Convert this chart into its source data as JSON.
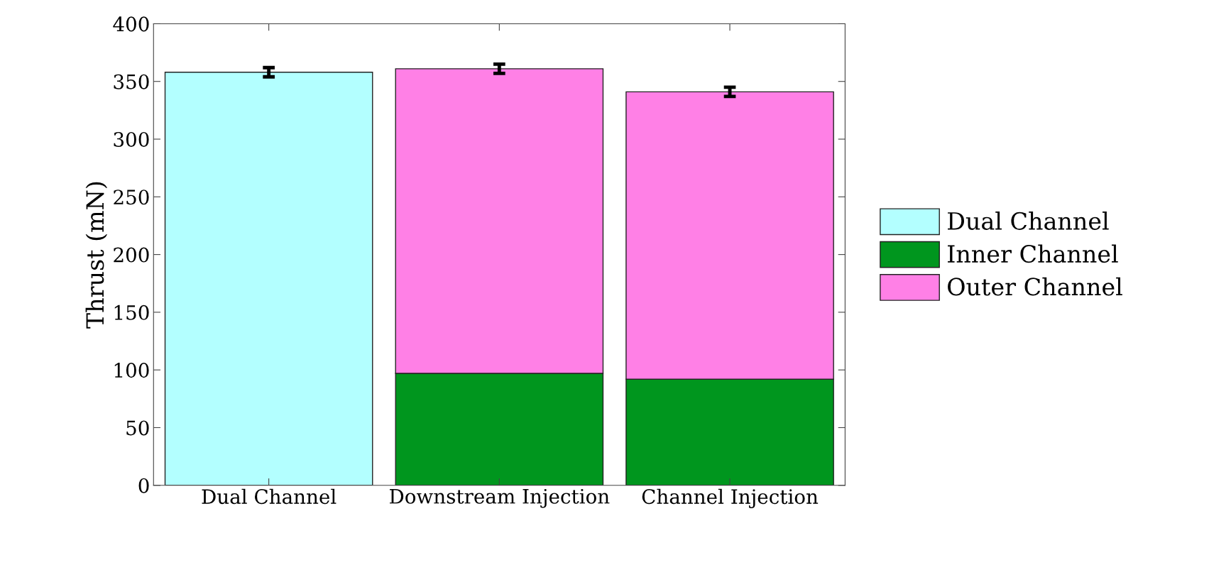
{
  "chart_data": {
    "type": "bar",
    "stacked": true,
    "ylabel": "Thrust (mN)",
    "categories": [
      "Dual Channel",
      "Downstream Injection",
      "Channel Injection"
    ],
    "series": [
      {
        "name": "Dual Channel",
        "color": "#b3ffff",
        "values": [
          358,
          null,
          null
        ],
        "errors": [
          4,
          null,
          null
        ]
      },
      {
        "name": "Inner Channel",
        "color": "#00961e",
        "values": [
          null,
          97,
          92
        ]
      },
      {
        "name": "Outer Channel",
        "color": "#ff80e6",
        "values": [
          null,
          264,
          249
        ],
        "errors": [
          null,
          4,
          4
        ]
      }
    ],
    "ylim": [
      0,
      400
    ],
    "yticks": [
      0,
      50,
      100,
      150,
      200,
      250,
      300,
      350,
      400
    ],
    "grid": false,
    "legend": "right"
  }
}
